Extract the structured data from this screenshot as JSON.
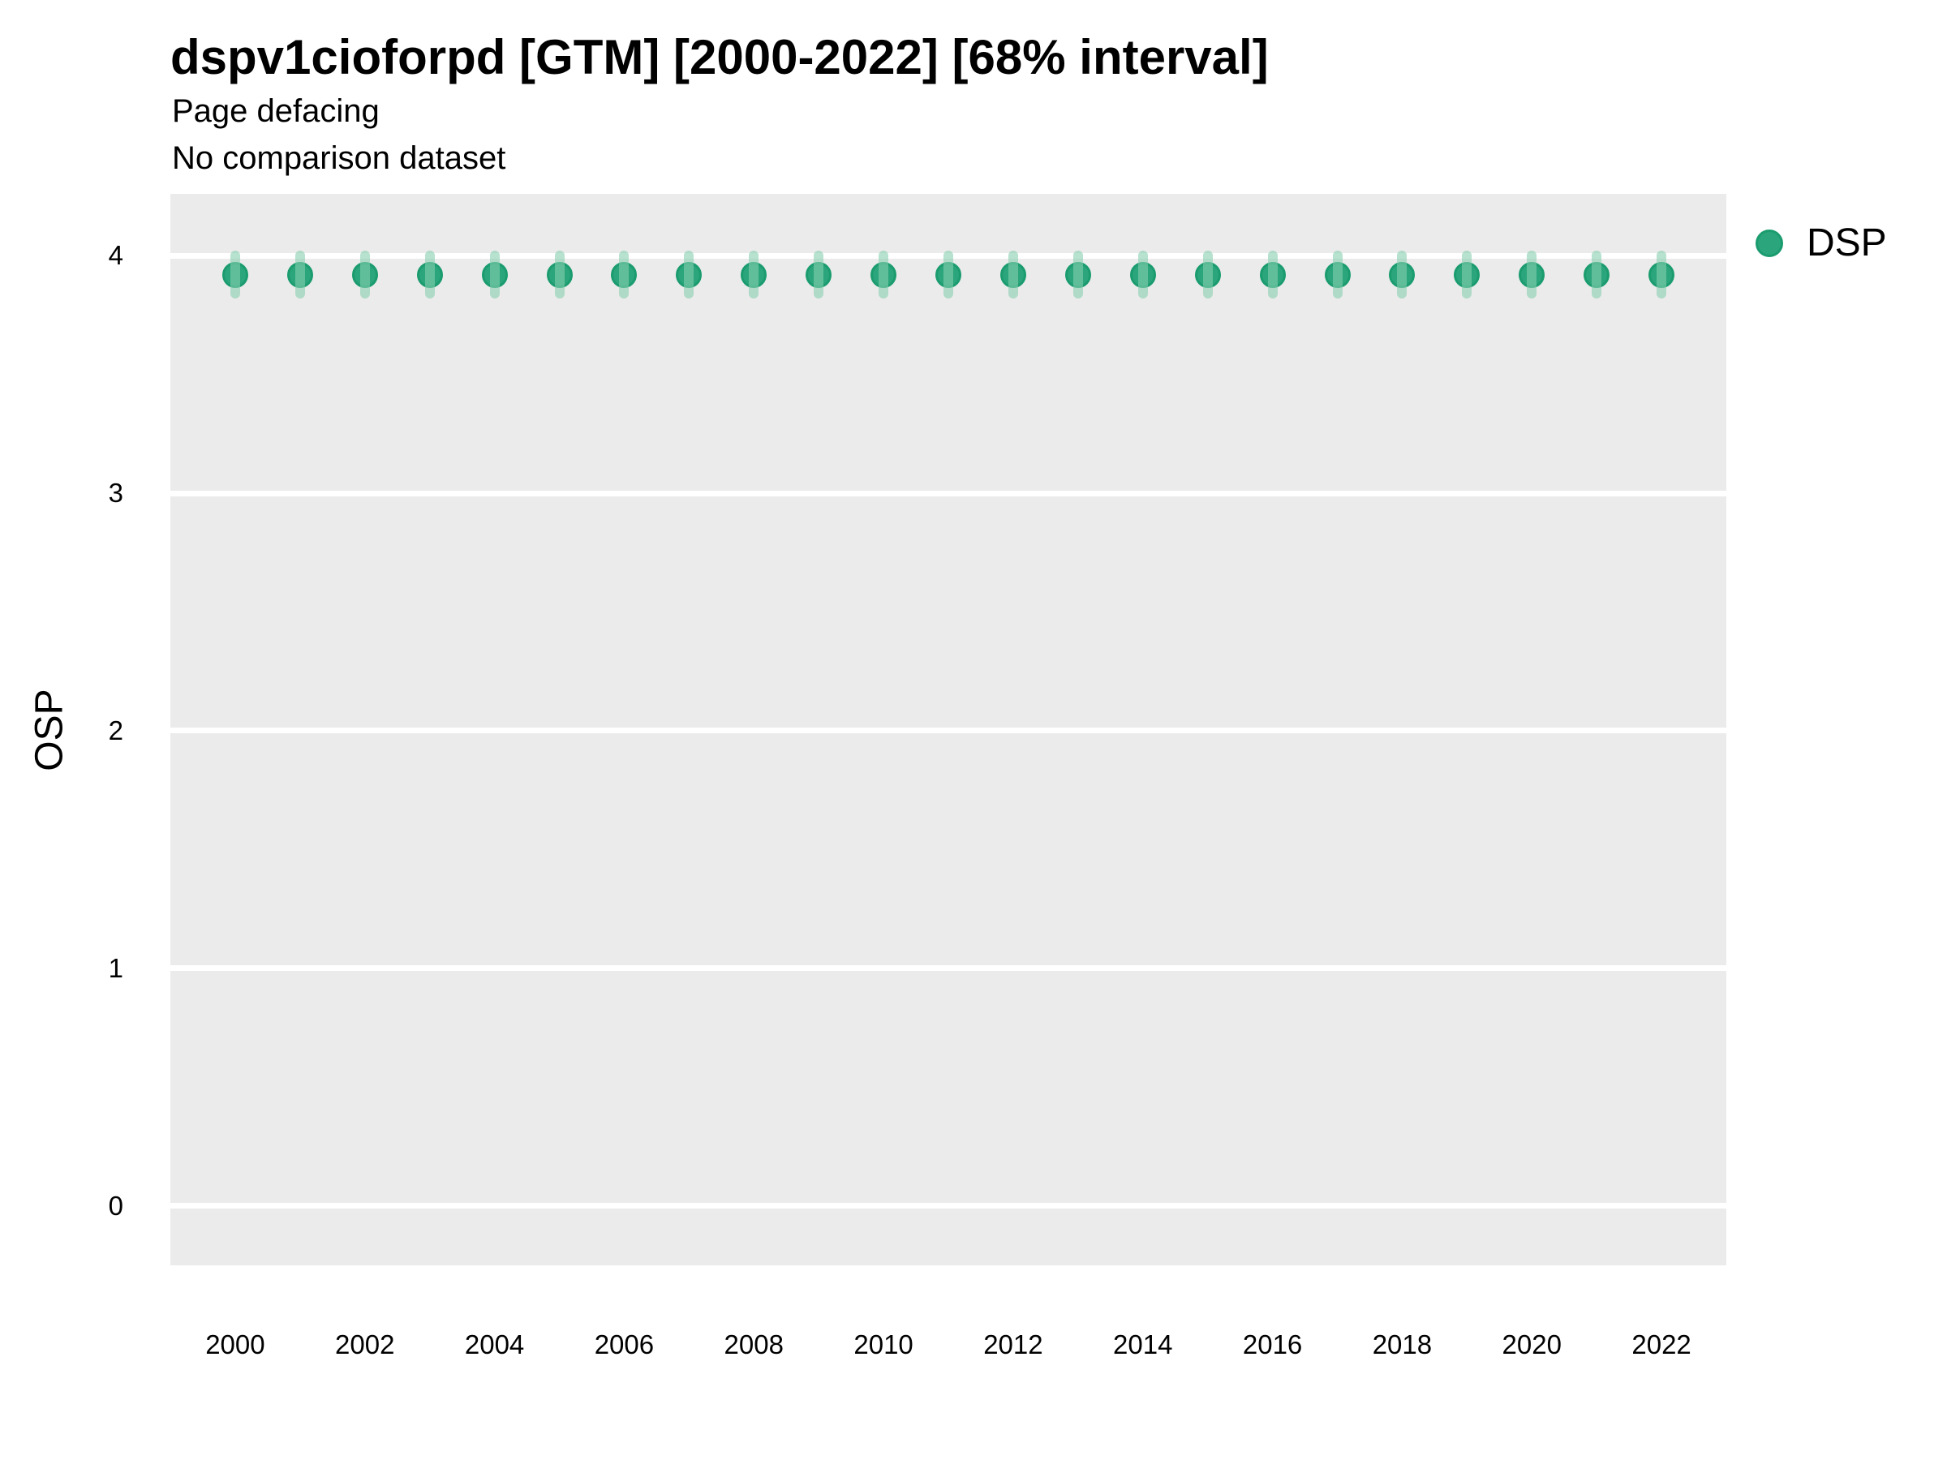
{
  "header": {
    "title": "dspv1cioforpd [GTM] [2000-2022] [68% interval]",
    "subtitle": "Page defacing",
    "note": "No comparison dataset"
  },
  "legend": {
    "label": "DSP",
    "position": "right-top"
  },
  "axes": {
    "y_title": "OSP",
    "x_title": "",
    "y_tick_labels": [
      "4",
      "3",
      "2",
      "1",
      "0"
    ],
    "x_tick_labels": [
      "2000",
      "2002",
      "2004",
      "2006",
      "2008",
      "2010",
      "2012",
      "2014",
      "2016",
      "2018",
      "2020",
      "2022"
    ]
  },
  "colors": {
    "point_fill": "#2BA57B",
    "point_border": "#1B9C6F",
    "interval_bar": "rgba(134, 207, 175, 0.6)",
    "panel_background": "#EBEBEB",
    "gridline": "#FFFFFF",
    "text": "#000000"
  },
  "chart_data": {
    "type": "scatter",
    "title": "dspv1cioforpd [GTM] [2000-2022] [68% interval]",
    "subtitle": "Page defacing",
    "annotation": "No comparison dataset",
    "xlabel": "",
    "ylabel": "OSP",
    "xlim": [
      1999,
      2023
    ],
    "ylim": [
      -0.25,
      4.26
    ],
    "x_ticks": [
      2000,
      2002,
      2004,
      2006,
      2008,
      2010,
      2012,
      2014,
      2016,
      2018,
      2020,
      2022
    ],
    "y_ticks": [
      0,
      1,
      2,
      3,
      4
    ],
    "grid": "major horizontal white gridlines on gray panel, no vertical gridlines, no axis tick marks",
    "legend_position": "right-top",
    "interval_level": "68%",
    "series": [
      {
        "name": "DSP",
        "x": [
          2000,
          2001,
          2002,
          2003,
          2004,
          2005,
          2006,
          2007,
          2008,
          2009,
          2010,
          2011,
          2012,
          2013,
          2014,
          2015,
          2016,
          2017,
          2018,
          2019,
          2020,
          2021,
          2022
        ],
        "y": [
          3.92,
          3.92,
          3.92,
          3.92,
          3.92,
          3.92,
          3.92,
          3.92,
          3.92,
          3.92,
          3.92,
          3.92,
          3.92,
          3.92,
          3.92,
          3.92,
          3.92,
          3.92,
          3.92,
          3.92,
          3.92,
          3.92,
          3.92
        ],
        "y_low": [
          3.82,
          3.82,
          3.82,
          3.82,
          3.82,
          3.82,
          3.82,
          3.82,
          3.82,
          3.82,
          3.82,
          3.82,
          3.82,
          3.82,
          3.82,
          3.82,
          3.82,
          3.82,
          3.82,
          3.82,
          3.82,
          3.82,
          3.82
        ],
        "y_high": [
          4.02,
          4.02,
          4.02,
          4.02,
          4.02,
          4.02,
          4.02,
          4.02,
          4.02,
          4.02,
          4.02,
          4.02,
          4.02,
          4.02,
          4.02,
          4.02,
          4.02,
          4.02,
          4.02,
          4.02,
          4.02,
          4.02,
          4.02
        ]
      }
    ]
  }
}
